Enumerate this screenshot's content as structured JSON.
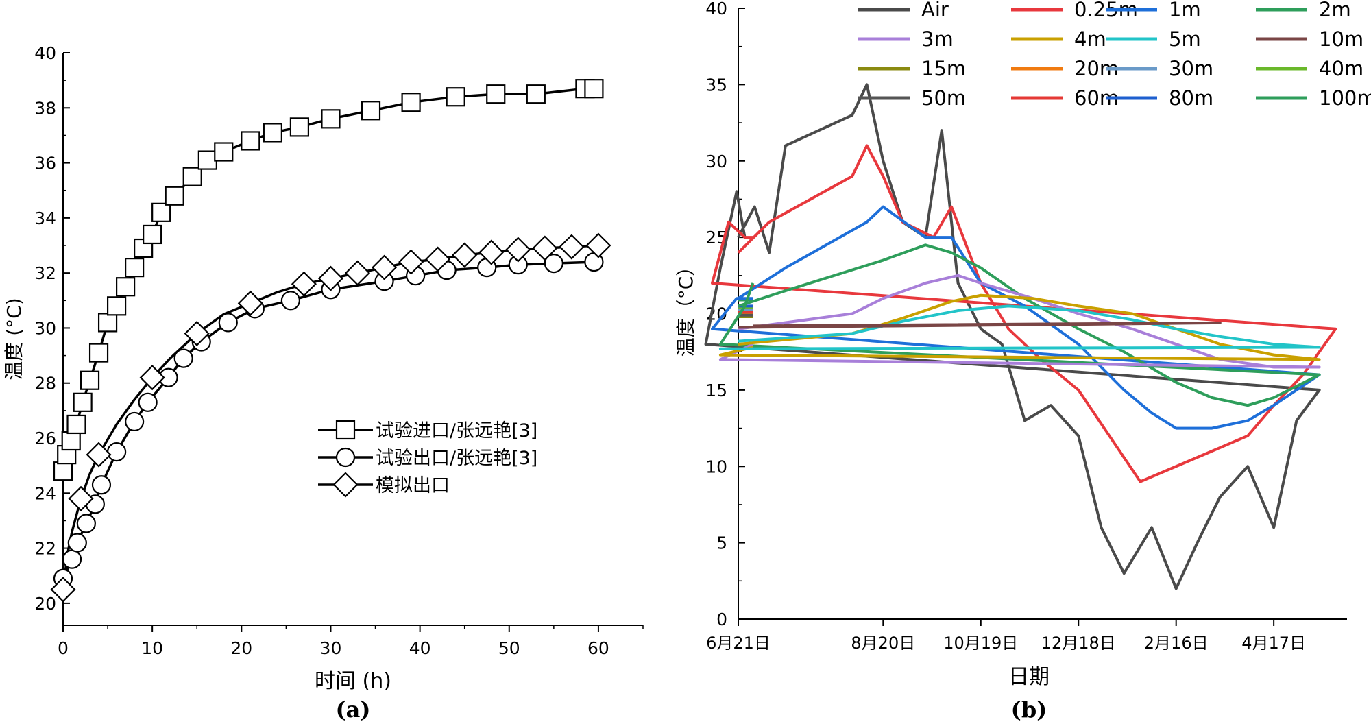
{
  "chart_data": [
    {
      "type": "line",
      "panel_label": "(a)",
      "xlabel": "时间 (h)",
      "ylabel": "温度 (°C)",
      "xlim": [
        0,
        65
      ],
      "ylim": [
        19.2,
        40
      ],
      "xticks": [
        0,
        10,
        20,
        30,
        40,
        50,
        60
      ],
      "yticks": [
        20,
        22,
        24,
        26,
        28,
        30,
        32,
        34,
        36,
        38,
        40
      ],
      "grid": false,
      "legend_position": "center-right",
      "series": [
        {
          "name": "试验进口/张远艳[3]",
          "marker": "square",
          "x": [
            0,
            0.4,
            0.9,
            1.5,
            2.2,
            3.0,
            4.0,
            5.0,
            6.0,
            7.0,
            8.0,
            9.0,
            10.0,
            11.0,
            12.5,
            14.5,
            16.2,
            18.0,
            21.0,
            23.5,
            26.5,
            30.0,
            34.5,
            39.0,
            44.0,
            48.5,
            53.0,
            58.5,
            59.5
          ],
          "y": [
            24.8,
            25.4,
            25.9,
            26.5,
            27.3,
            28.1,
            29.1,
            30.2,
            30.8,
            31.5,
            32.2,
            32.9,
            33.4,
            34.2,
            34.8,
            35.5,
            36.1,
            36.4,
            36.8,
            37.1,
            37.3,
            37.6,
            37.9,
            38.2,
            38.4,
            38.5,
            38.5,
            38.7,
            38.7
          ]
        },
        {
          "name": "试验出口/张远艳[3]",
          "marker": "circle",
          "x": [
            0,
            1.0,
            1.6,
            2.6,
            3.6,
            4.3,
            6.0,
            8.0,
            9.5,
            11.8,
            13.5,
            15.5,
            18.5,
            21.5,
            25.5,
            30.0,
            36.0,
            39.5,
            43.0,
            47.5,
            51.0,
            55.0,
            59.5
          ],
          "y": [
            20.9,
            21.6,
            22.2,
            22.9,
            23.6,
            24.3,
            25.5,
            26.6,
            27.3,
            28.2,
            28.9,
            29.5,
            30.2,
            30.7,
            31.0,
            31.4,
            31.7,
            31.9,
            32.1,
            32.2,
            32.3,
            32.35,
            32.4
          ]
        },
        {
          "name": "模拟出口",
          "marker": "diamond",
          "curve": "smooth",
          "x": [
            0,
            0.5,
            1,
            2,
            3,
            4,
            6,
            8,
            10,
            12,
            15,
            18,
            21,
            24,
            27,
            30,
            33,
            36,
            39,
            42,
            45,
            48,
            51,
            54,
            57,
            60
          ],
          "y": [
            20.5,
            21.8,
            22.6,
            23.8,
            24.7,
            25.4,
            26.5,
            27.4,
            28.2,
            28.9,
            29.8,
            30.5,
            30.9,
            31.3,
            31.6,
            31.8,
            32.0,
            32.2,
            32.4,
            32.5,
            32.65,
            32.75,
            32.85,
            32.9,
            32.95,
            33.0
          ]
        }
      ]
    },
    {
      "type": "line",
      "panel_label": "(b)",
      "xlabel": "日期",
      "ylabel": "温度（°C）",
      "x_type": "date",
      "xlim": [
        "6月21日",
        "6月30日"
      ],
      "x_tick_labels": [
        "6月21日",
        "8月20日",
        "10月19日",
        "12月18日",
        "2月16日",
        "4月17日"
      ],
      "ylim": [
        0,
        40
      ],
      "yticks": [
        0,
        5,
        10,
        15,
        20,
        25,
        30,
        35,
        40
      ],
      "grid": false,
      "legend_position": "top",
      "legend_columns": 4,
      "series": [
        {
          "name": "Air",
          "color": "#4a4a4a",
          "x": [
            "6月21日",
            "7月1日",
            "7月10日",
            "7月20日",
            "8月1日",
            "8月10日",
            "8月20日",
            "9月1日",
            "9月15日",
            "9月25日",
            "10月5日",
            "10月19日",
            "11月1日",
            "11月15日",
            "12月1日",
            "12月18日",
            "1月1日",
            "1月15日",
            "2月1日",
            "2月16日",
            "3月1日",
            "3月15日",
            "4月1日",
            "4月17日",
            "5月1日",
            "5月15日",
            "6月1日",
            "6月10日",
            "6月20日",
            "6月25日"
          ],
          "y": [
            25,
            27,
            24,
            31,
            33,
            35,
            30,
            26,
            25,
            32,
            22,
            19,
            18,
            13,
            14,
            12,
            6,
            3,
            6,
            2,
            5,
            8,
            10,
            6,
            13,
            15,
            18,
            23,
            28,
            25
          ]
        },
        {
          "name": "0.25m",
          "color": "#e8383d",
          "x": [
            "6月21日",
            "7月10日",
            "8月1日",
            "8月10日",
            "8月20日",
            "9月1日",
            "9月20日",
            "10月1日",
            "10月19日",
            "11月5日",
            "11月25日",
            "12月18日",
            "1月25日",
            "2月16日",
            "3月10日",
            "4月1日",
            "4月17日",
            "5月5日",
            "5月25日",
            "6月5日",
            "6月15日",
            "6月25日",
            "6月30日"
          ],
          "y": [
            24,
            26,
            29,
            31,
            29,
            26,
            25,
            27,
            22,
            19,
            17,
            15,
            9,
            10,
            11,
            12,
            14,
            16,
            19,
            22,
            26,
            25,
            25
          ]
        },
        {
          "name": "1m",
          "color": "#1e6fd9",
          "x": [
            "6月21日",
            "7月20日",
            "8月10日",
            "8月20日",
            "9月15日",
            "10月1日",
            "10月19日",
            "11月15日",
            "12月18日",
            "1月15日",
            "2月1日",
            "2月16日",
            "3月10日",
            "4月1日",
            "4月17日",
            "5月15日",
            "6月5日",
            "6月20日",
            "6月30日"
          ],
          "y": [
            21,
            23,
            26,
            27,
            25,
            25,
            22,
            20.5,
            18,
            15,
            13.5,
            12.5,
            12.5,
            13,
            14,
            16,
            19,
            21,
            21
          ]
        },
        {
          "name": "2m",
          "color": "#2e9e5b",
          "x": [
            "6月21日",
            "7月20日",
            "8月20日",
            "9月15日",
            "10月1日",
            "10月19日",
            "11月15日",
            "12月18日",
            "1月15日",
            "2月16日",
            "3月10日",
            "4月1日",
            "4月17日",
            "5月15日",
            "6月10日",
            "6月25日",
            "6月30日"
          ],
          "y": [
            20.5,
            21.5,
            23.5,
            24.5,
            24,
            23,
            21,
            19,
            17.5,
            15.5,
            14.5,
            14,
            14.5,
            16,
            18,
            20.5,
            22
          ]
        },
        {
          "name": "3m",
          "color": "#a87fd9",
          "x": [
            "6月21日",
            "8月1日",
            "8月20日",
            "9月15日",
            "10月5日",
            "10月19日",
            "11月20日",
            "12月18日",
            "1月20日",
            "2月16日",
            "3月15日",
            "4月17日",
            "5月15日",
            "6月10日",
            "6月30日"
          ],
          "y": [
            19,
            20,
            21,
            22,
            22.5,
            22,
            21,
            20,
            19,
            18,
            17,
            16.5,
            16.5,
            17,
            18
          ]
        },
        {
          "name": "4m",
          "color": "#c9a000",
          "x": [
            "6月21日",
            "8月1日",
            "9月1日",
            "10月1日",
            "10月19日",
            "11月20日",
            "12月18日",
            "1月20日",
            "2月16日",
            "3月15日",
            "4月17日",
            "5月15日",
            "6月10日",
            "6月30日"
          ],
          "y": [
            18,
            18.7,
            19.7,
            20.8,
            21.2,
            21,
            20.5,
            20,
            19,
            18,
            17.3,
            17,
            17.3,
            17.8
          ]
        },
        {
          "name": "5m",
          "color": "#22c4c8",
          "x": [
            "6月21日",
            "8月1日",
            "9月1日",
            "10月5日",
            "11月5日",
            "12月18日",
            "1月20日",
            "2月16日",
            "3月15日",
            "4月17日",
            "5月15日",
            "6月10日",
            "6月30日"
          ],
          "y": [
            18.2,
            18.7,
            19.5,
            20.2,
            20.5,
            20.2,
            19.6,
            19,
            18.5,
            18,
            17.8,
            17.7,
            17.7
          ]
        },
        {
          "name": "10m",
          "color": "#7a4545",
          "x": [
            "6月21日",
            "9月1日",
            "12月18日",
            "3月15日",
            "6月30日"
          ],
          "y": [
            19.1,
            19.2,
            19.3,
            19.4,
            19.2
          ]
        },
        {
          "name": "15m",
          "color": "#8a8a10",
          "x": [
            "6月21日",
            "6月30日"
          ],
          "y": [
            19.8,
            19.8
          ]
        },
        {
          "name": "20m",
          "color": "#f07a10",
          "x": [
            "6月21日",
            "6月30日"
          ],
          "y": [
            20.0,
            20.0
          ]
        },
        {
          "name": "30m",
          "color": "#6a9ac8",
          "x": [
            "6月21日",
            "6月30日"
          ],
          "y": [
            20.2,
            20.2
          ]
        },
        {
          "name": "40m",
          "color": "#6ab82a",
          "x": [
            "6月21日",
            "6月30日"
          ],
          "y": [
            20.4,
            20.4
          ]
        },
        {
          "name": "50m",
          "color": "#555555",
          "x": [
            "6月21日",
            "6月30日"
          ],
          "y": [
            19.9,
            19.9
          ]
        },
        {
          "name": "60m",
          "color": "#e53935",
          "x": [
            "6月21日",
            "6月30日"
          ],
          "y": [
            20.1,
            20.1
          ]
        },
        {
          "name": "80m",
          "color": "#1e5fcf",
          "x": [
            "6月21日",
            "6月30日"
          ],
          "y": [
            20.5,
            20.5
          ]
        },
        {
          "name": "100m",
          "color": "#2e9e5b",
          "x": [
            "6月21日",
            "6月30日"
          ],
          "y": [
            20.9,
            20.9
          ]
        }
      ]
    }
  ]
}
